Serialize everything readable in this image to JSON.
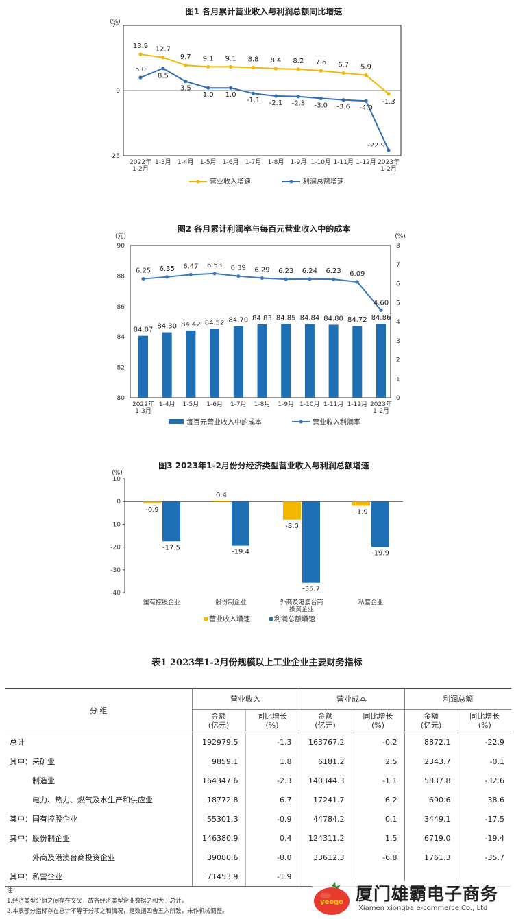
{
  "chart_data": [
    {
      "type": "line",
      "title": "图1  各月累计营业收入与利润总额同比增速",
      "y_unit": "(%)",
      "ylim": [
        -25,
        25
      ],
      "yticks": [
        "25",
        "0",
        "-25"
      ],
      "categories": [
        "2022年|1-2月",
        "1-3月",
        "1-4月",
        "1-5月",
        "1-6月",
        "1-7月",
        "1-8月",
        "1-9月",
        "1-10月",
        "1-11月",
        "1-12月",
        "2023年|1-2月"
      ],
      "series": [
        {
          "name": "营业收入增速",
          "color": "#f2b705",
          "values": [
            13.9,
            12.7,
            9.7,
            9.1,
            9.1,
            8.8,
            8.4,
            8.2,
            7.6,
            6.7,
            5.9,
            -1.3
          ],
          "labels": [
            "13.9",
            "12.7",
            "9.7",
            "9.1",
            "9.1",
            "8.8",
            "8.4",
            "8.2",
            "7.6",
            "6.7",
            "5.9",
            "-1.3"
          ]
        },
        {
          "name": "利润总额增速",
          "color": "#2e6db4",
          "values": [
            5.0,
            8.5,
            3.5,
            1.0,
            1.0,
            -1.1,
            -2.1,
            -2.3,
            -3.0,
            -3.6,
            -4.0,
            -22.9
          ],
          "labels": [
            "5.0",
            "8.5",
            "3.5",
            "1.0",
            "1.0",
            "-1.1",
            "-2.1",
            "-2.3",
            "-3.0",
            "-3.6",
            "-4.0",
            "-22.9"
          ]
        }
      ],
      "legend": "bottom"
    },
    {
      "type": "bar",
      "title": "图2  各月累计利润率与每百元营业收入中的成本",
      "y_unit_left": "(元)",
      "y_unit_right": "(%)",
      "ylim_left": [
        80,
        90
      ],
      "ylim_right": [
        0,
        8
      ],
      "yticks_left": [
        "90",
        "88",
        "86",
        "84",
        "82",
        "80"
      ],
      "yticks_right": [
        "8",
        "7",
        "6",
        "5",
        "4",
        "3",
        "2",
        "1",
        "0"
      ],
      "categories": [
        "2022年|1-3月",
        "1-4月",
        "1-5月",
        "1-6月",
        "1-7月",
        "1-8月",
        "1-9月",
        "1-10月",
        "1-11月",
        "1-12月",
        "2023年|1-2月"
      ],
      "series": [
        {
          "name": "每百元营业收入中的成本",
          "color": "#1f6fb5",
          "axis": "left",
          "values": [
            84.07,
            84.3,
            84.42,
            84.52,
            84.7,
            84.83,
            84.85,
            84.84,
            84.8,
            84.72,
            84.86
          ],
          "labels": [
            "84.07",
            "84.30",
            "84.42",
            "84.52",
            "84.70",
            "84.83",
            "84.85",
            "84.84",
            "84.80",
            "84.72",
            "84.86"
          ]
        },
        {
          "name": "营业收入利润率",
          "color": "#3a78b8",
          "axis": "right",
          "values": [
            6.25,
            6.35,
            6.47,
            6.53,
            6.39,
            6.29,
            6.23,
            6.24,
            6.23,
            6.09,
            4.6
          ],
          "labels": [
            "6.25",
            "6.35",
            "6.47",
            "6.53",
            "6.39",
            "6.29",
            "6.23",
            "6.24",
            "6.23",
            "6.09",
            "4.60"
          ]
        }
      ],
      "legend": "bottom"
    },
    {
      "type": "bar",
      "title": "图3  2023年1-2月份分经济类型营业收入与利润总额增速",
      "y_unit": "(%)",
      "ylim": [
        -40,
        10
      ],
      "yticks": [
        "10",
        "0",
        "-10",
        "-20",
        "-30",
        "-40"
      ],
      "categories": [
        "国有控股企业",
        "股份制企业",
        "外商及港澳台商|投资企业",
        "私营企业"
      ],
      "series": [
        {
          "name": "营业收入增速",
          "color": "#f5b800",
          "values": [
            -0.9,
            0.4,
            -8.0,
            -1.9
          ],
          "labels": [
            "-0.9",
            "0.4",
            "-8.0",
            "-1.9"
          ]
        },
        {
          "name": "利润总额增速",
          "color": "#1f6fb5",
          "values": [
            -17.5,
            -19.4,
            -35.7,
            -19.9
          ],
          "labels": [
            "-17.5",
            "-19.4",
            "-35.7",
            "-19.9"
          ]
        }
      ],
      "legend": "bottom"
    },
    {
      "type": "table",
      "title": "表1    2023年1-2月份规模以上工业企业主要财务指标",
      "group_header": "分    组",
      "column_groups": [
        "营业收入",
        "营业成本",
        "利润总额"
      ],
      "sub_amount_1": "金额",
      "sub_amount_2": "(亿元)",
      "sub_growth_1": "同比增长",
      "sub_growth_2": "(%)",
      "rows": [
        {
          "name": "总计",
          "values": [
            "192979.5",
            "-1.3",
            "163767.2",
            "-0.2",
            "8872.1",
            "-22.9"
          ]
        },
        {
          "name": "其中：采矿业",
          "values": [
            "9859.1",
            "1.8",
            "6181.2",
            "2.5",
            "2343.7",
            "-0.1"
          ]
        },
        {
          "name": "　　　制造业",
          "values": [
            "164347.6",
            "-2.3",
            "140344.3",
            "-1.1",
            "5837.8",
            "-32.6"
          ]
        },
        {
          "name": "　　　电力、热力、燃气及水生产和供应业",
          "values": [
            "18772.8",
            "6.7",
            "17241.7",
            "6.2",
            "690.6",
            "38.6"
          ]
        },
        {
          "name": "其中：国有控股企业",
          "values": [
            "55301.3",
            "-0.9",
            "44784.2",
            "0.1",
            "3449.1",
            "-17.5"
          ]
        },
        {
          "name": "其中：股份制企业",
          "values": [
            "146380.9",
            "0.4",
            "124311.2",
            "1.5",
            "6719.0",
            "-19.4"
          ]
        },
        {
          "name": "　　　外商及港澳台商投资企业",
          "values": [
            "39080.6",
            "-8.0",
            "33612.3",
            "-6.8",
            "1761.3",
            "-35.7"
          ]
        },
        {
          "name": "其中：私营企业",
          "values": [
            "71453.9",
            "-1.9",
            "",
            "",
            "",
            ""
          ]
        }
      ]
    }
  ],
  "notes": {
    "heading": "注：",
    "line1": "1.经济类型分组之间存在交叉，故各经济类型企业数据之和大于总计。",
    "line2": "2.本表部分指标存在总计不等于分项之和情况，是数据四舍五入所致，未作机械调整。"
  },
  "watermark": {
    "logo_text": "yeego",
    "name": "厦门雄霸电子商务",
    "sub": "Xiamen xiongba e-commerce Co., Ltd"
  }
}
